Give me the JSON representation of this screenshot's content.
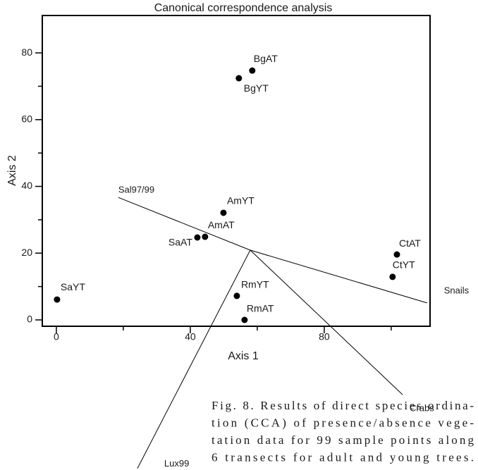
{
  "chart_data": {
    "type": "scatter",
    "title": "Canonical correspondence analysis",
    "x_label": "Axis 1",
    "y_label": "Axis 2",
    "xlim": [
      -4.2,
      111.6
    ],
    "ylim": [
      -1.9,
      91.2
    ],
    "xticks": [
      0,
      40,
      80
    ],
    "yticks": [
      0,
      20,
      40,
      60,
      80
    ],
    "xminor": [
      20,
      60,
      100
    ],
    "yminor": [
      10,
      30,
      50,
      70
    ],
    "color": "#000000",
    "points": [
      {
        "label": "BgAT",
        "x": 58.5,
        "y": 74.7
      },
      {
        "label": "BgYT",
        "x": 54.5,
        "y": 72.4
      },
      {
        "label": "AmYT",
        "x": 49.9,
        "y": 32.1
      },
      {
        "label": "AmAT",
        "x": 44.4,
        "y": 24.9
      },
      {
        "label": "SaAT",
        "x": 42.1,
        "y": 24.7
      },
      {
        "label": "CtAT",
        "x": 101.7,
        "y": 19.6
      },
      {
        "label": "CtYT",
        "x": 100.4,
        "y": 12.9
      },
      {
        "label": "SaYT",
        "x": 0.2,
        "y": 6.1
      },
      {
        "label": "RmYT",
        "x": 53.9,
        "y": 7.2
      },
      {
        "label": "RmAT",
        "x": 56.2,
        "y": 0
      }
    ],
    "vector_origin": {
      "x": 57.9,
      "y": 20.9
    },
    "vectors": [
      {
        "name": "Sal97/99",
        "x": 18.5,
        "y": 36.7
      },
      {
        "name": "Snails",
        "x": 110.7,
        "y": 5.1
      },
      {
        "name": "Crabs",
        "x": 103.4,
        "y": -22.4
      },
      {
        "name": "Lux99",
        "x": 24.2,
        "y": -44.5
      }
    ],
    "caption": [
      "Fig. 8. Results of direct species ordina-",
      "tion (CCA) of presence/absence vege-",
      "tation data for 99 sample points along",
      "6 transects for adult and young trees."
    ]
  }
}
